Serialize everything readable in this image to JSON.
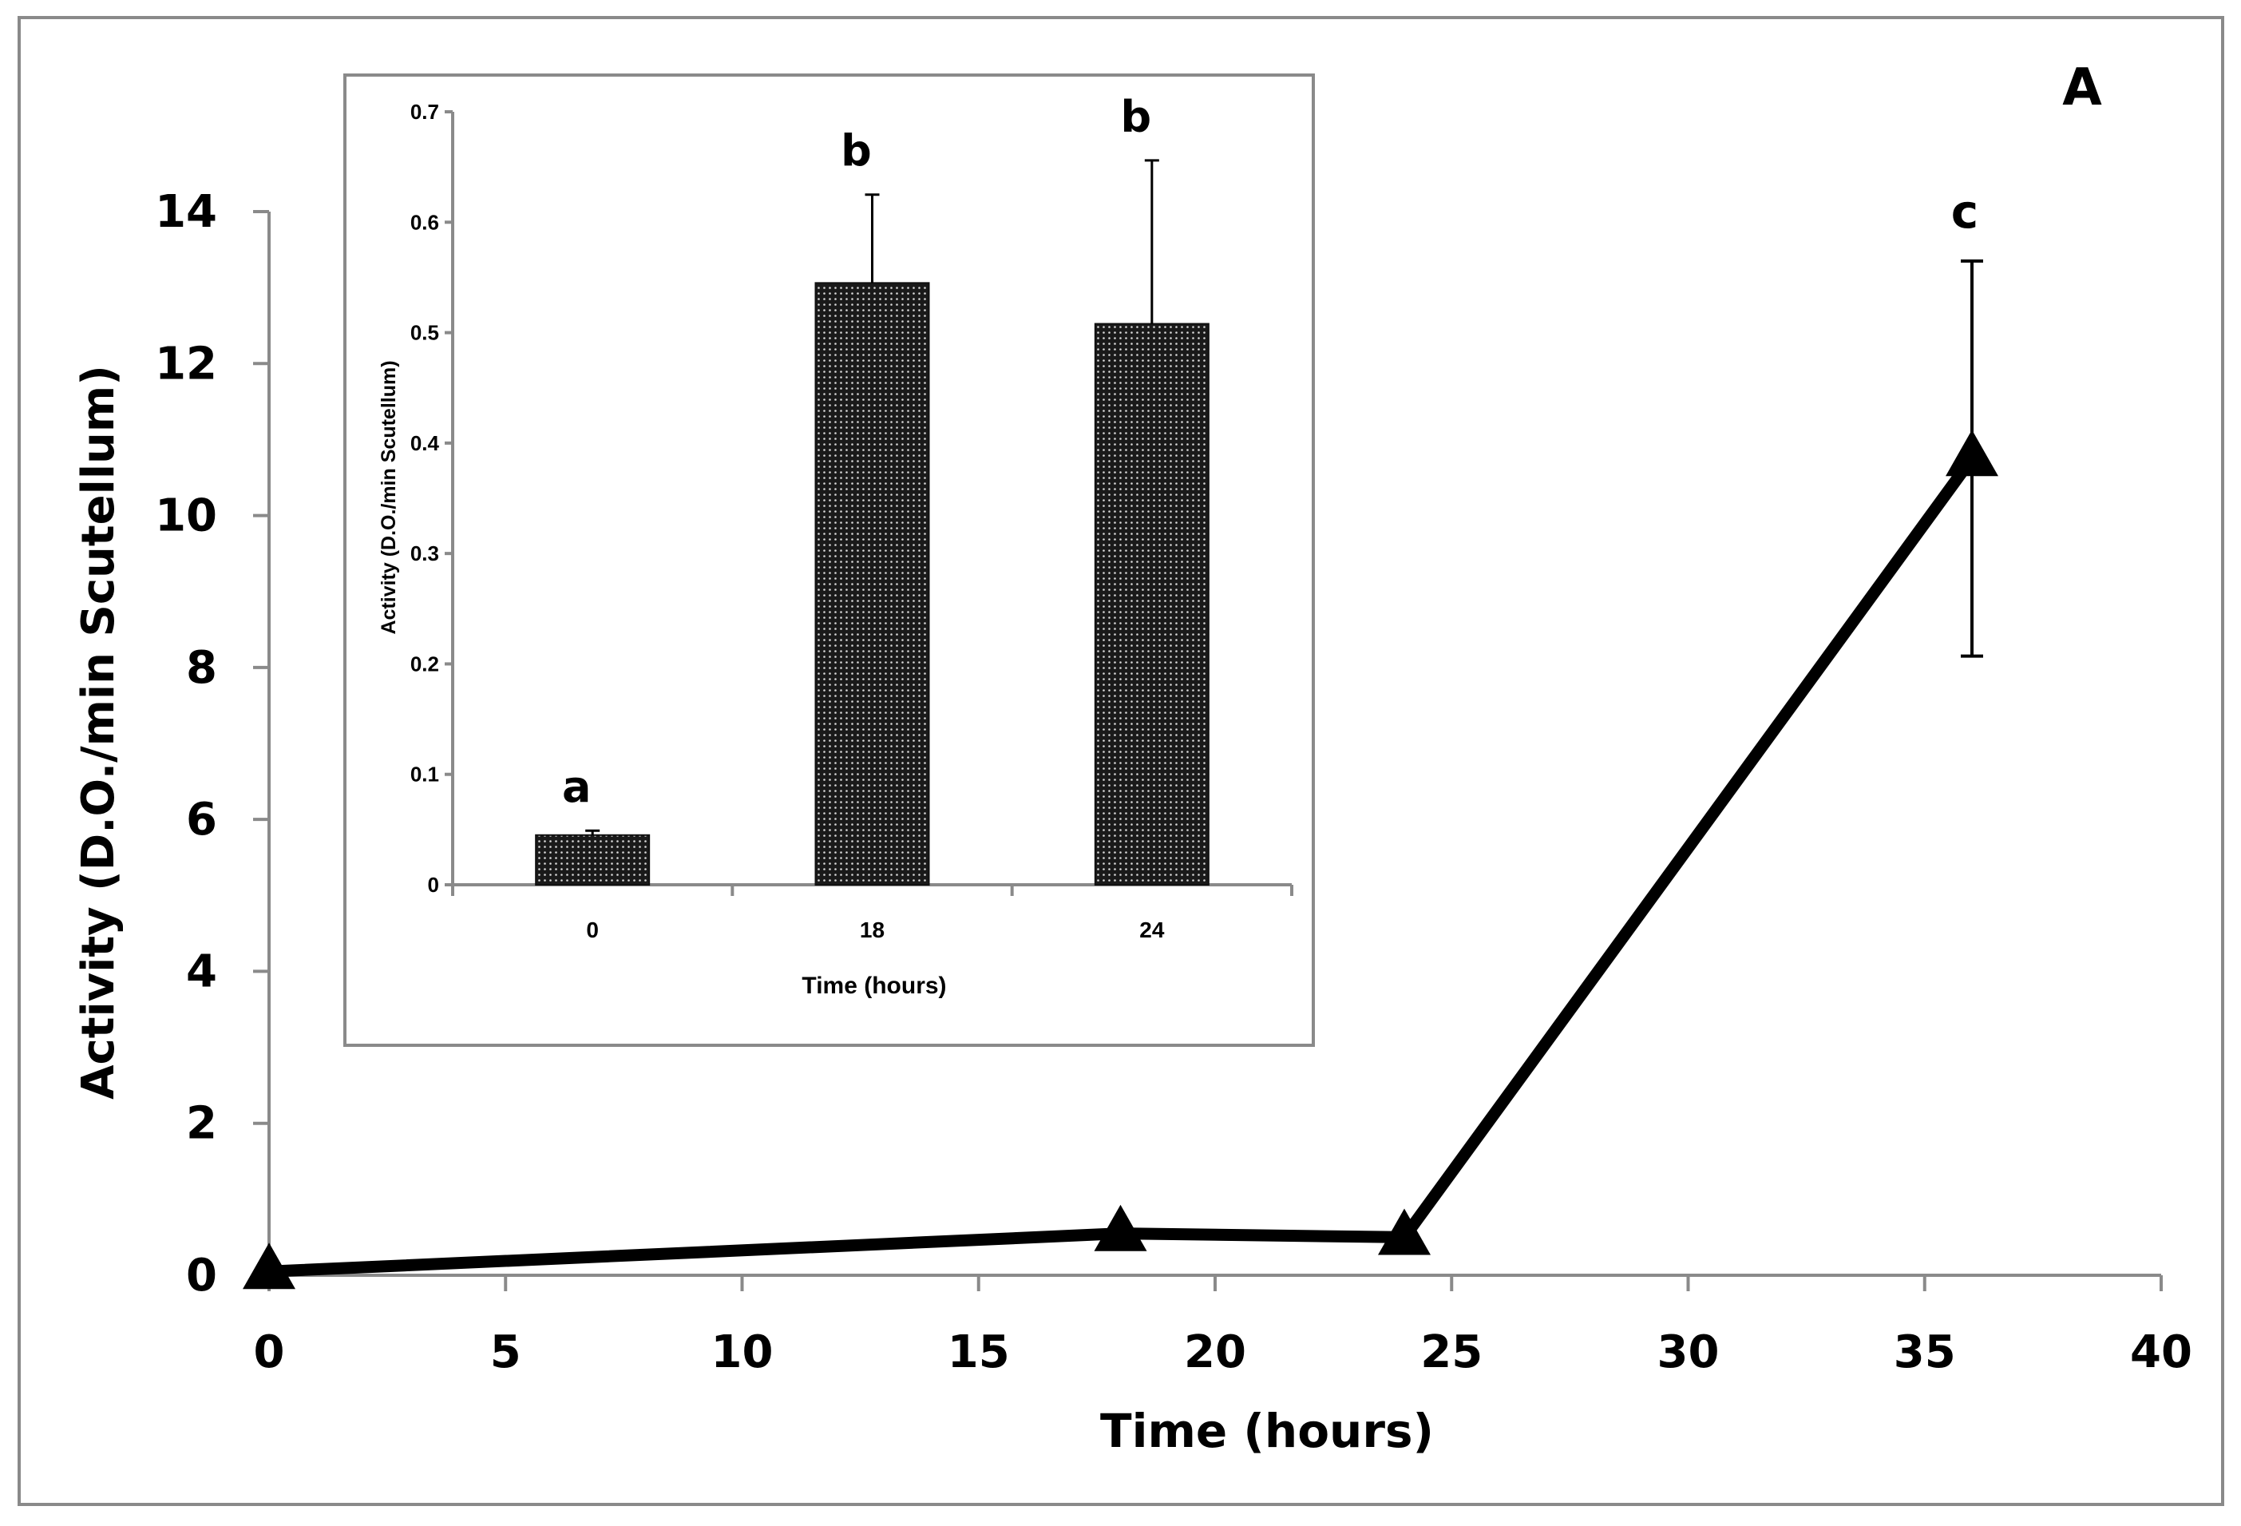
{
  "chart_data": [
    {
      "type": "line",
      "panel_label": "A",
      "title": "",
      "xlabel": "Time (hours)",
      "ylabel": "Activity (D.O./min Scutellum)",
      "xlim": [
        0,
        40
      ],
      "ylim": [
        0,
        14
      ],
      "xticks": [
        "0",
        "5",
        "10",
        "15",
        "20",
        "25",
        "30",
        "35",
        "40"
      ],
      "yticks": [
        "0",
        "2",
        "4",
        "6",
        "8",
        "10",
        "12",
        "14"
      ],
      "series": [
        {
          "name": "Activity",
          "x": [
            0,
            18,
            24,
            36
          ],
          "y": [
            0.05,
            0.55,
            0.5,
            10.75
          ],
          "error": [
            0,
            0,
            0,
            2.6
          ],
          "annotations": [
            "",
            "",
            "",
            "c"
          ]
        }
      ],
      "grid": false,
      "legend": "none"
    },
    {
      "type": "bar",
      "title": "",
      "xlabel": "Time (hours)",
      "ylabel": "Activity (D.O./min Scutellum)",
      "categories": [
        "0",
        "18",
        "24"
      ],
      "values": [
        0.045,
        0.545,
        0.508
      ],
      "errors": [
        0.004,
        0.08,
        0.148
      ],
      "annotations": [
        "a",
        "b",
        "b"
      ],
      "ylim": [
        0,
        0.7
      ],
      "yticks": [
        "0",
        "0.1",
        "0.2",
        "0.3",
        "0.4",
        "0.5",
        "0.6",
        "0.7"
      ],
      "grid": false,
      "legend": "none"
    }
  ]
}
